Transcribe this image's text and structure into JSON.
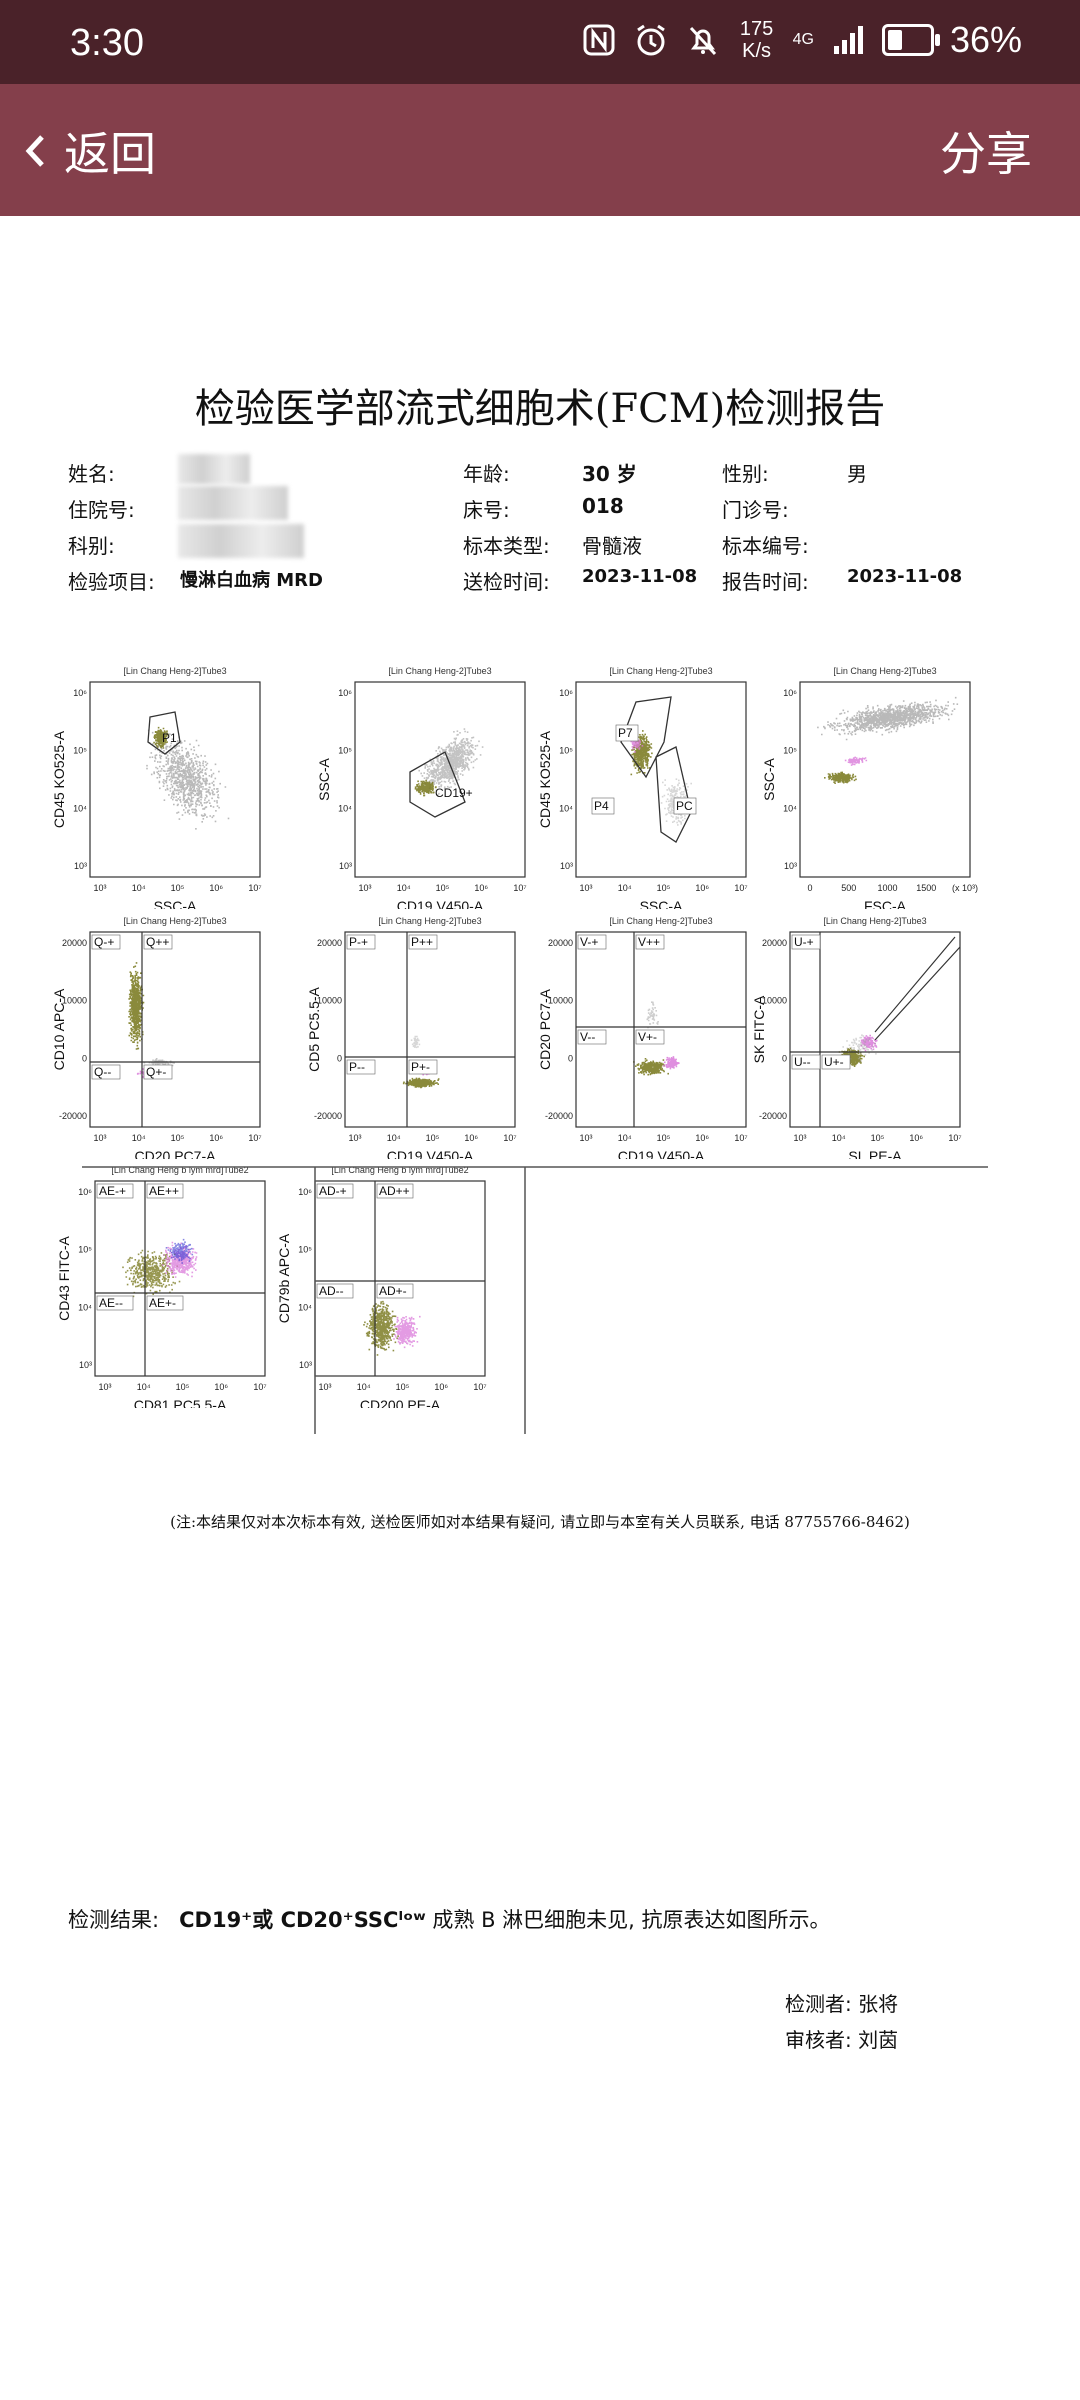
{
  "status_bar": {
    "time": "3:30",
    "net_speed_value": "175",
    "net_speed_unit": "K/s",
    "signal": "4G",
    "battery": "36%",
    "battery_level": 0.36
  },
  "app_bar": {
    "back_label": "返回",
    "share_label": "分享"
  },
  "report": {
    "title": "检验医学部流式细胞术(FCM)检测报告",
    "fields": {
      "name_label": "姓名:",
      "inpatient_label": "住院号:",
      "dept_label": "科别:",
      "item_label": "检验项目:",
      "item_value": "慢淋白血病 MRD",
      "age_label": "年龄:",
      "age_value": "30 岁",
      "bed_label": "床号:",
      "bed_value": "018",
      "specimen_type_label": "标本类型:",
      "specimen_type_value": "骨髓液",
      "send_time_label": "送检时间:",
      "send_time_value": "2023-11-08",
      "sex_label": "性别:",
      "sex_value": "男",
      "outpatient_label": "门诊号:",
      "specimen_no_label": "标本编号:",
      "report_time_label": "报告时间:",
      "report_time_value": "2023-11-08"
    },
    "plots": [
      {
        "title": "[Lin Chang Heng-2]Tube3",
        "xlabel": "SSC-A",
        "ylabel": "CD45 KO525-A",
        "gates": [
          "P1"
        ]
      },
      {
        "title": "[Lin Chang Heng-2]Tube3",
        "xlabel": "CD19 V450-A",
        "ylabel": "SSC-A",
        "gates": [
          "CD19+"
        ]
      },
      {
        "title": "[Lin Chang Heng-2]Tube3",
        "xlabel": "SSC-A",
        "ylabel": "CD45 KO525-A",
        "gates": [
          "P7",
          "P4",
          "PC"
        ]
      },
      {
        "title": "[Lin Chang Heng-2]Tube3",
        "xlabel": "FSC-A",
        "ylabel": "SSC-A",
        "gates": []
      },
      {
        "title": "[Lin Chang Heng-2]Tube3",
        "xlabel": "CD20 PC7-A",
        "ylabel": "CD10 APC-A",
        "gates": [
          "Q-+",
          "Q++",
          "Q--",
          "Q+-"
        ]
      },
      {
        "title": "[Lin Chang Heng-2]Tube3",
        "xlabel": "CD19 V450-A",
        "ylabel": "CD5 PC5.5-A",
        "gates": [
          "P-+",
          "P++",
          "P--",
          "P+-"
        ]
      },
      {
        "title": "[Lin Chang Heng-2]Tube3",
        "xlabel": "CD19 V450-A",
        "ylabel": "CD20 PC7-A",
        "gates": [
          "V-+",
          "V++",
          "V--",
          "V+-"
        ]
      },
      {
        "title": "[Lin Chang Heng-2]Tube3",
        "xlabel": "SL PE-A",
        "ylabel": "SK FITC-A",
        "gates": [
          "U-+",
          "U--",
          "U+-"
        ]
      },
      {
        "title": "[Lin Chang Heng b lym mrd]Tube2",
        "xlabel": "CD81 PC5.5-A",
        "ylabel": "CD43 FITC-A",
        "gates": [
          "AE-+",
          "AE++",
          "AE--",
          "AE+-"
        ]
      },
      {
        "title": "[Lin Chang Heng b lym mrd]Tube2",
        "xlabel": "CD200 PE-A",
        "ylabel": "CD79b APC-A",
        "gates": [
          "AD-+",
          "AD++",
          "AD--",
          "AD+-"
        ]
      }
    ],
    "tick_labels": {
      "log": [
        "10³",
        "10⁴",
        "10⁵",
        "10⁶",
        "10⁷"
      ],
      "fsc": [
        "0",
        "500",
        "1000",
        "1500",
        "(x 10³)"
      ],
      "lin": [
        "20000",
        "10000",
        "0",
        "-20000"
      ]
    },
    "note": "(注:本结果仅对本次标本有效, 送检医师如对本结果有疑问, 请立即与本室有关人员联系, 电话 87755766-8462)",
    "result_label": "检测结果:",
    "result_marker": "CD19⁺或 CD20⁺SSCˡᵒʷ",
    "result_text": "成熟 B 淋巴细胞未见, 抗原表达如图所示。",
    "tester": "检测者: 张将",
    "reviewer": "审核者: 刘茵"
  },
  "colors": {
    "status_bg": "#4a2229",
    "appbar_bg": "#843f4b",
    "gray_events": "#9b9b9b",
    "olive_events": "#7d7d26",
    "pink_events": "#d97ad9",
    "blue_events": "#3b3bd0"
  },
  "icons": [
    "nfc-icon",
    "alarm-icon",
    "bell-off-icon",
    "signal-icon",
    "battery-icon",
    "chevron-left-icon"
  ]
}
